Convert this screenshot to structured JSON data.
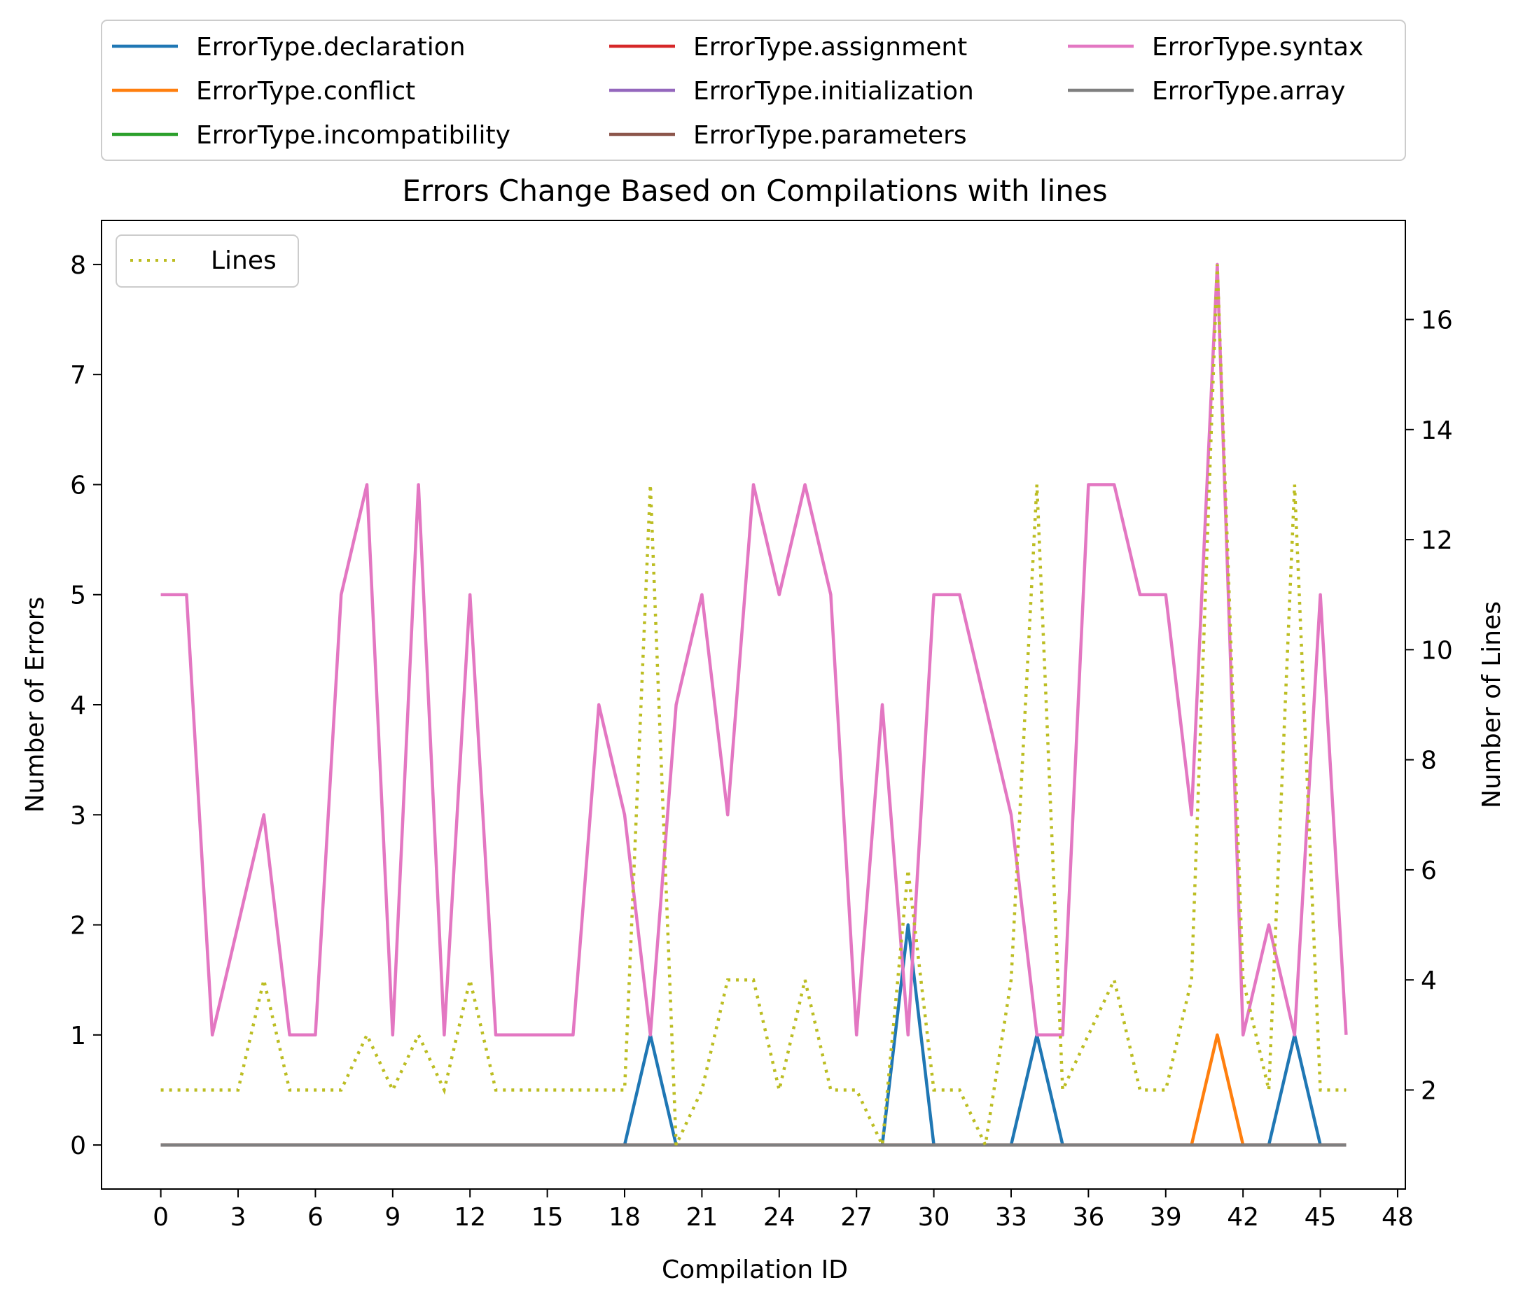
{
  "chart_data": {
    "type": "line",
    "title": "Errors Change Based on Compilations with lines",
    "xlabel": "Compilation ID",
    "ylabel": "Number of Errors",
    "y2label": "Number of Lines",
    "xlim": [
      -2.3,
      48.3
    ],
    "ylim": [
      -0.4,
      8.4
    ],
    "y2lim": [
      0.2,
      17.8
    ],
    "xticks": [
      0,
      3,
      6,
      9,
      12,
      15,
      18,
      21,
      24,
      27,
      30,
      33,
      36,
      39,
      42,
      45,
      48
    ],
    "yticks": [
      0,
      1,
      2,
      3,
      4,
      5,
      6,
      7,
      8
    ],
    "y2ticks": [
      2,
      4,
      6,
      8,
      10,
      12,
      14,
      16
    ],
    "x": [
      0,
      1,
      2,
      3,
      4,
      5,
      6,
      7,
      8,
      9,
      10,
      11,
      12,
      13,
      14,
      15,
      16,
      17,
      18,
      19,
      20,
      21,
      22,
      23,
      24,
      25,
      26,
      27,
      28,
      29,
      30,
      31,
      32,
      33,
      34,
      35,
      36,
      37,
      38,
      39,
      40,
      41,
      42,
      43,
      44,
      45,
      46
    ],
    "series": [
      {
        "name": "ErrorType.declaration",
        "color": "#1f77b4",
        "values": [
          0,
          0,
          0,
          0,
          0,
          0,
          0,
          0,
          0,
          0,
          0,
          0,
          0,
          0,
          0,
          0,
          0,
          0,
          0,
          1,
          0,
          0,
          0,
          0,
          0,
          0,
          0,
          0,
          0,
          2,
          0,
          0,
          0,
          0,
          1,
          0,
          0,
          0,
          0,
          0,
          0,
          0,
          0,
          0,
          1,
          0,
          0
        ]
      },
      {
        "name": "ErrorType.conflict",
        "color": "#ff7f0e",
        "values": [
          0,
          0,
          0,
          0,
          0,
          0,
          0,
          0,
          0,
          0,
          0,
          0,
          0,
          0,
          0,
          0,
          0,
          0,
          0,
          0,
          0,
          0,
          0,
          0,
          0,
          0,
          0,
          0,
          0,
          0,
          0,
          0,
          0,
          0,
          0,
          0,
          0,
          0,
          0,
          0,
          0,
          1,
          0,
          0,
          0,
          0,
          0
        ]
      },
      {
        "name": "ErrorType.incompatibility",
        "color": "#2ca02c",
        "values": [
          0,
          0,
          0,
          0,
          0,
          0,
          0,
          0,
          0,
          0,
          0,
          0,
          0,
          0,
          0,
          0,
          0,
          0,
          0,
          0,
          0,
          0,
          0,
          0,
          0,
          0,
          0,
          0,
          0,
          0,
          0,
          0,
          0,
          0,
          0,
          0,
          0,
          0,
          0,
          0,
          0,
          0,
          0,
          0,
          0,
          0,
          0
        ]
      },
      {
        "name": "ErrorType.assignment",
        "color": "#d62728",
        "values": [
          0,
          0,
          0,
          0,
          0,
          0,
          0,
          0,
          0,
          0,
          0,
          0,
          0,
          0,
          0,
          0,
          0,
          0,
          0,
          0,
          0,
          0,
          0,
          0,
          0,
          0,
          0,
          0,
          0,
          0,
          0,
          0,
          0,
          0,
          0,
          0,
          0,
          0,
          0,
          0,
          0,
          0,
          0,
          0,
          0,
          0,
          0
        ]
      },
      {
        "name": "ErrorType.initialization",
        "color": "#9467bd",
        "values": [
          0,
          0,
          0,
          0,
          0,
          0,
          0,
          0,
          0,
          0,
          0,
          0,
          0,
          0,
          0,
          0,
          0,
          0,
          0,
          0,
          0,
          0,
          0,
          0,
          0,
          0,
          0,
          0,
          0,
          0,
          0,
          0,
          0,
          0,
          0,
          0,
          0,
          0,
          0,
          0,
          0,
          0,
          0,
          0,
          0,
          0,
          0
        ]
      },
      {
        "name": "ErrorType.parameters",
        "color": "#8c564b",
        "values": [
          0,
          0,
          0,
          0,
          0,
          0,
          0,
          0,
          0,
          0,
          0,
          0,
          0,
          0,
          0,
          0,
          0,
          0,
          0,
          0,
          0,
          0,
          0,
          0,
          0,
          0,
          0,
          0,
          0,
          0,
          0,
          0,
          0,
          0,
          0,
          0,
          0,
          0,
          0,
          0,
          0,
          0,
          0,
          0,
          0,
          0,
          0
        ]
      },
      {
        "name": "ErrorType.syntax",
        "color": "#e377c2",
        "values": [
          5,
          5,
          1,
          2,
          3,
          1,
          1,
          5,
          6,
          1,
          6,
          1,
          5,
          1,
          1,
          1,
          1,
          4,
          3,
          1,
          4,
          5,
          3,
          6,
          5,
          6,
          5,
          1,
          4,
          1,
          5,
          5,
          4,
          3,
          1,
          1,
          6,
          6,
          5,
          5,
          3,
          8,
          1,
          2,
          1,
          5,
          1
        ]
      },
      {
        "name": "ErrorType.array",
        "color": "#7f7f7f",
        "values": [
          0,
          0,
          0,
          0,
          0,
          0,
          0,
          0,
          0,
          0,
          0,
          0,
          0,
          0,
          0,
          0,
          0,
          0,
          0,
          0,
          0,
          0,
          0,
          0,
          0,
          0,
          0,
          0,
          0,
          0,
          0,
          0,
          0,
          0,
          0,
          0,
          0,
          0,
          0,
          0,
          0,
          0,
          0,
          0,
          0,
          0,
          0
        ]
      }
    ],
    "lines_series": {
      "name": "Lines",
      "color": "#bcbd22",
      "style": "dotted",
      "axis": "right",
      "values": [
        2,
        2,
        2,
        2,
        4,
        2,
        2,
        2,
        3,
        2,
        3,
        2,
        4,
        2,
        2,
        2,
        2,
        2,
        2,
        13,
        1,
        2,
        4,
        4,
        2,
        4,
        2,
        2,
        1,
        6,
        2,
        2,
        1,
        4,
        13,
        2,
        3,
        4,
        2,
        2,
        4,
        17,
        4,
        2,
        13,
        2,
        2
      ]
    },
    "legend_main": {
      "position": "top",
      "columns": 3
    },
    "legend_lines": {
      "position": "upper-left"
    }
  }
}
